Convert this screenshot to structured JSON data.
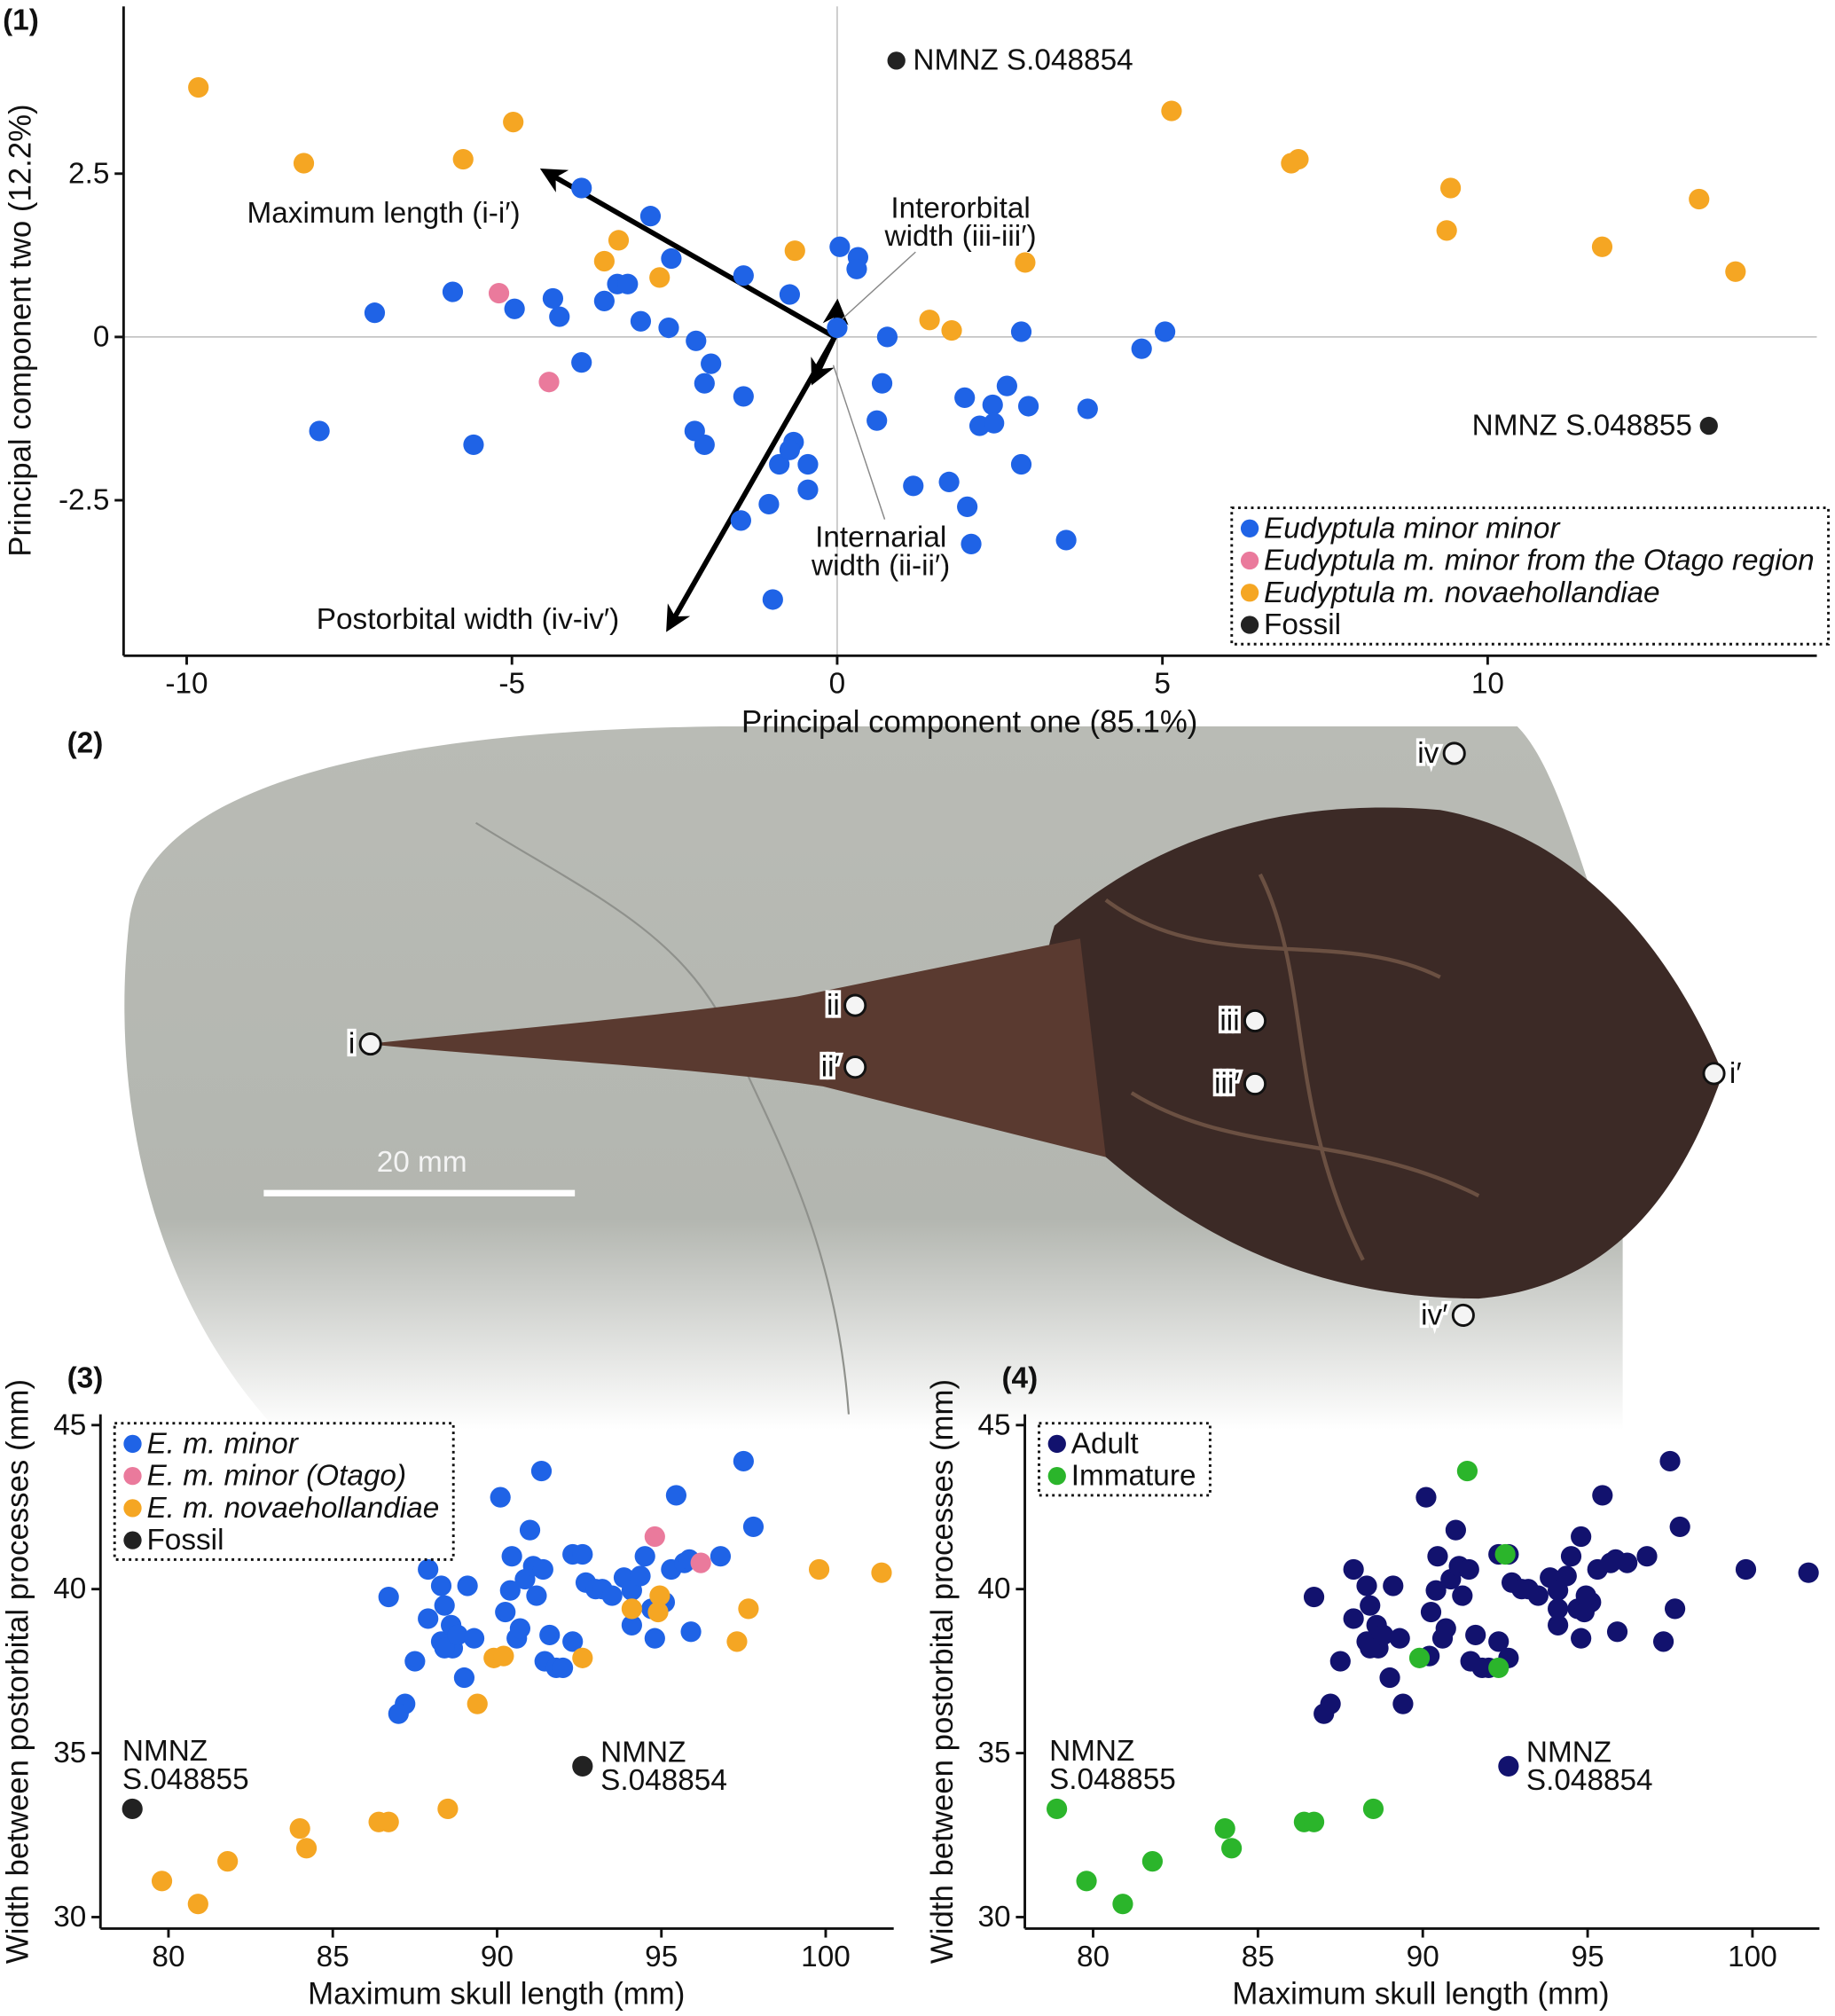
{
  "photo": {
    "panel_label": "(2)",
    "scale_bar": "20 mm",
    "landmarks": [
      "i",
      "ii",
      "ii′",
      "iii",
      "iii′",
      "iv",
      "iv′",
      "i′"
    ]
  },
  "chart_data": [
    {
      "type": "scatter",
      "panel_label": "(1)",
      "x_label": "Principal component one (85.1%)",
      "y_label": "Principal component two (12.2%)",
      "xlim": [
        -10.97,
        15.06
      ],
      "ylim": [
        -4.88,
        5.06
      ],
      "xticks": [
        -10,
        -5,
        0,
        5,
        10
      ],
      "yticks": [
        -2.5,
        0,
        2.5
      ],
      "zero_lines": true,
      "legend": "lower right",
      "series": [
        {
          "name": "Eudyptula minor minor",
          "italic": true,
          "color": "#1f63e6",
          "x": [
            -3.93,
            -2.87,
            -2.55,
            -1.44,
            0.04,
            0.32,
            0.3,
            -3.38,
            -3.22,
            -3.58,
            -5.91,
            -4.96,
            -4.37,
            -4.27,
            -7.11,
            -3.02,
            -2.59,
            -2.17,
            -0.73,
            0,
            0.77,
            2.83,
            4.68,
            5.04,
            -1.94,
            -3.93,
            -2.04,
            0.69,
            1.96,
            2.61,
            2.39,
            2.19,
            2.41,
            2.94,
            3.85,
            0.61,
            -1.44,
            -7.96,
            -5.59,
            -2.19,
            -2.04,
            -0.67,
            -0.89,
            -0.45,
            -0.45,
            1.17,
            1.72,
            2.0,
            2.83,
            -1.05,
            -1.48,
            2.06,
            3.52,
            -0.99,
            -0.73
          ],
          "values": [
            2.28,
            1.85,
            1.2,
            0.94,
            1.38,
            1.22,
            1.04,
            0.81,
            0.81,
            0.55,
            0.69,
            0.43,
            0.59,
            0.31,
            0.37,
            0.24,
            0.14,
            -0.06,
            0.65,
            0.14,
            0,
            0.08,
            -0.18,
            0.08,
            -0.41,
            -0.39,
            -0.71,
            -0.71,
            -0.93,
            -0.75,
            -1.04,
            -1.36,
            -1.32,
            -1.06,
            -1.1,
            -1.28,
            -0.91,
            -1.44,
            -1.65,
            -1.44,
            -1.65,
            -1.61,
            -1.95,
            -1.95,
            -2.34,
            -2.28,
            -2.22,
            -2.6,
            -1.95,
            -2.56,
            -2.81,
            -3.17,
            -3.11,
            -4.02,
            -1.73
          ]
        },
        {
          "name": "Eudyptula m. minor from the Otago region",
          "italic": true,
          "color": "#ea7a9c",
          "x": [
            -5.2,
            -4.43
          ],
          "values": [
            0.67,
            -0.69
          ]
        },
        {
          "name": "Eudyptula m. novaehollandiae",
          "italic": true,
          "color": "#f5a623",
          "x": [
            -9.82,
            -8.2,
            -5.75,
            -4.98,
            -3.36,
            -3.58,
            -2.73,
            -0.65,
            2.89,
            1.42,
            1.76,
            5.14,
            6.98,
            7.09,
            9.43,
            9.37,
            11.76,
            13.25,
            13.81
          ],
          "values": [
            3.82,
            2.66,
            2.72,
            3.29,
            1.48,
            1.16,
            0.91,
            1.32,
            1.14,
            0.26,
            0.1,
            3.46,
            2.66,
            2.72,
            2.28,
            1.63,
            1.38,
            2.11,
            1.0
          ]
        },
        {
          "name": "Fossil",
          "italic": false,
          "color": "#222222",
          "x": [
            0.91,
            13.4
          ],
          "values": [
            4.23,
            -1.36
          ]
        }
      ],
      "annotations": [
        [
          "NMNZ S.048854"
        ],
        [
          "NMNZ S.048855"
        ]
      ],
      "loadings": [
        {
          "label": [
            "Maximum length (i-i′)"
          ],
          "x": -4.5,
          "y": 2.54
        },
        {
          "label": [
            "Interorbital",
            "width (iii-iii′)"
          ],
          "x": 0,
          "y": 0.51
        },
        {
          "label": [
            "Internarial",
            "width (ii-ii′)"
          ],
          "x": -0.36,
          "y": -0.67
        },
        {
          "label": [
            "Postorbital width (iv-iv′)"
          ],
          "x": -2.59,
          "y": -4.45
        }
      ]
    },
    {
      "type": "scatter",
      "panel_label": "(3)",
      "x_label": "Maximum skull length (mm)",
      "y_label": "Width between postorbital processes (mm)",
      "xlim": [
        77.93,
        102.07
      ],
      "ylim": [
        29.65,
        45.33
      ],
      "xticks": [
        80,
        85,
        90,
        95,
        100
      ],
      "yticks": [
        30,
        35,
        40,
        45
      ],
      "zero_lines": false,
      "legend": "upper left",
      "series": [
        {
          "name": "E. m. minor",
          "italic": true,
          "color": "#1f63e6",
          "x": [
            86.7,
            87.2,
            87.0,
            87.5,
            87.9,
            87.9,
            88.3,
            88.4,
            88.3,
            88.6,
            88.65,
            88.4,
            88.8,
            89.0,
            89.1,
            89.3,
            90.1,
            90.25,
            90.4,
            90.45,
            90.6,
            90.7,
            90.85,
            91.0,
            91.1,
            91.2,
            91.35,
            91.4,
            91.45,
            91.6,
            91.8,
            92.0,
            92.3,
            92.3,
            92.6,
            92.7,
            93.0,
            93.2,
            93.5,
            93.86,
            94.1,
            94.1,
            94.36,
            94.5,
            94.7,
            94.8,
            95.1,
            95.3,
            95.45,
            95.7,
            95.85,
            95.9,
            96.8,
            97.5,
            97.8
          ],
          "values": [
            39.76,
            36.5,
            36.2,
            37.8,
            40.6,
            39.1,
            38.4,
            39.5,
            40.1,
            38.9,
            38.2,
            38.2,
            38.6,
            37.3,
            40.1,
            38.5,
            42.8,
            39.3,
            39.96,
            41.0,
            38.5,
            38.8,
            40.3,
            41.8,
            40.7,
            39.8,
            43.6,
            40.6,
            37.8,
            38.6,
            37.6,
            37.6,
            41.06,
            38.4,
            41.06,
            40.2,
            40.0,
            40.0,
            39.8,
            40.35,
            38.9,
            39.96,
            40.4,
            41.0,
            39.4,
            38.5,
            39.6,
            40.6,
            42.86,
            40.8,
            40.9,
            38.7,
            41.0,
            43.9,
            41.9
          ]
        },
        {
          "name": "E. m. minor (Otago)",
          "italic": true,
          "color": "#ea7a9c",
          "x": [
            94.8,
            96.2
          ],
          "values": [
            41.6,
            40.8
          ]
        },
        {
          "name": "E. m. novaehollandiae",
          "italic": true,
          "color": "#f5a623",
          "x": [
            79.8,
            80.9,
            81.8,
            84.0,
            84.2,
            86.4,
            86.7,
            88.5,
            89.4,
            89.9,
            90.2,
            92.6,
            94.1,
            94.95,
            94.9,
            97.3,
            97.65,
            99.8,
            101.7
          ],
          "values": [
            31.1,
            30.4,
            31.7,
            32.7,
            32.1,
            32.9,
            32.9,
            33.3,
            36.5,
            37.9,
            37.96,
            37.9,
            39.4,
            39.8,
            39.3,
            38.4,
            39.4,
            40.6,
            40.5
          ]
        },
        {
          "name": "Fossil",
          "italic": false,
          "color": "#222222",
          "x": [
            78.9,
            92.6
          ],
          "values": [
            33.3,
            34.6
          ]
        }
      ],
      "annotations": [
        [
          "NMNZ",
          "S.048855"
        ],
        [
          "NMNZ",
          "S.048854"
        ]
      ]
    },
    {
      "type": "scatter",
      "panel_label": "(4)",
      "x_label": "Maximum skull length (mm)",
      "y_label": "Width between postorbital processes (mm)",
      "xlim": [
        77.93,
        102.03
      ],
      "ylim": [
        29.65,
        45.33
      ],
      "xticks": [
        80,
        85,
        90,
        95,
        100
      ],
      "yticks": [
        30,
        35,
        40,
        45
      ],
      "zero_lines": false,
      "legend": "upper left",
      "series": [
        {
          "name": "Adult",
          "italic": false,
          "color": "#12126e",
          "x": [
            86.7,
            87.2,
            87.0,
            87.5,
            87.9,
            87.9,
            88.3,
            88.4,
            88.3,
            88.6,
            88.65,
            88.4,
            88.8,
            89.0,
            89.1,
            89.3,
            90.1,
            90.25,
            90.4,
            90.45,
            90.6,
            90.7,
            90.85,
            91.0,
            91.1,
            91.2,
            91.4,
            91.45,
            91.6,
            91.8,
            92.0,
            92.3,
            92.3,
            92.6,
            92.7,
            93.0,
            93.2,
            93.5,
            93.86,
            94.1,
            94.1,
            94.36,
            94.5,
            94.7,
            94.8,
            95.1,
            95.3,
            95.45,
            95.7,
            95.85,
            95.9,
            96.8,
            97.5,
            97.8,
            94.8,
            96.2,
            89.4,
            90.2,
            92.6,
            94.1,
            94.95,
            94.9,
            97.3,
            97.65,
            99.8,
            101.7,
            92.6
          ],
          "values": [
            39.76,
            36.5,
            36.2,
            37.8,
            40.6,
            39.1,
            38.4,
            39.5,
            40.1,
            38.9,
            38.2,
            38.2,
            38.6,
            37.3,
            40.1,
            38.5,
            42.8,
            39.3,
            39.96,
            41.0,
            38.5,
            38.8,
            40.3,
            41.8,
            40.7,
            39.8,
            40.6,
            37.8,
            38.6,
            37.6,
            37.6,
            41.06,
            38.4,
            41.06,
            40.2,
            40.0,
            40.0,
            39.8,
            40.35,
            38.9,
            39.96,
            40.4,
            41.0,
            39.4,
            38.5,
            39.6,
            40.6,
            42.86,
            40.8,
            40.9,
            38.7,
            41.0,
            43.9,
            41.9,
            41.6,
            40.8,
            36.5,
            37.96,
            37.9,
            39.4,
            39.8,
            39.3,
            38.4,
            39.4,
            40.6,
            40.5,
            34.6
          ]
        },
        {
          "name": "Immature",
          "italic": false,
          "color": "#2bb52b",
          "x": [
            78.9,
            79.8,
            80.9,
            81.8,
            84.0,
            84.2,
            86.4,
            86.7,
            88.5,
            89.9,
            91.35,
            92.5,
            92.3
          ],
          "values": [
            33.3,
            31.1,
            30.4,
            31.7,
            32.7,
            32.1,
            32.9,
            32.9,
            33.3,
            37.9,
            43.6,
            41.06,
            37.6
          ]
        }
      ],
      "annotations": [
        [
          "NMNZ",
          "S.048855"
        ],
        [
          "NMNZ",
          "S.048854"
        ]
      ]
    }
  ]
}
